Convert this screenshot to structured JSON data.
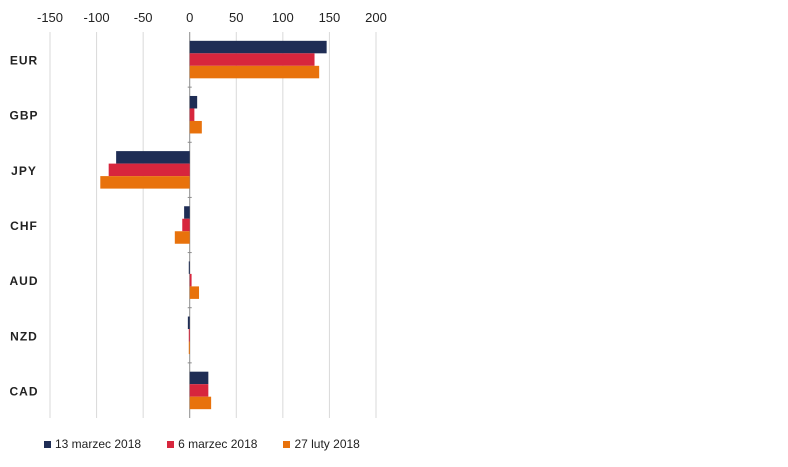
{
  "chart_data": {
    "type": "bar",
    "orientation": "horizontal",
    "categories": [
      "EUR",
      "GBP",
      "JPY",
      "CHF",
      "AUD",
      "NZD",
      "CAD"
    ],
    "series": [
      {
        "name": "13 marzec 2018",
        "color": "#1f2d55",
        "values": [
          147,
          8,
          -79,
          -6,
          -1,
          -2,
          20
        ]
      },
      {
        "name": "6 marzec 2018",
        "color": "#d7263d",
        "values": [
          134,
          5,
          -87,
          -8,
          2,
          -1,
          20
        ]
      },
      {
        "name": "27 luty 2018",
        "color": "#e8720c",
        "values": [
          139,
          13,
          -96,
          -16,
          10,
          -1,
          23
        ]
      }
    ],
    "xlim": [
      -150,
      200
    ],
    "x_ticks": [
      -150,
      -100,
      -50,
      0,
      50,
      100,
      150,
      200
    ],
    "x_axis_position": "top",
    "grid": "vertical",
    "legend_position": "bottom",
    "title": "",
    "xlabel": "",
    "ylabel": ""
  }
}
